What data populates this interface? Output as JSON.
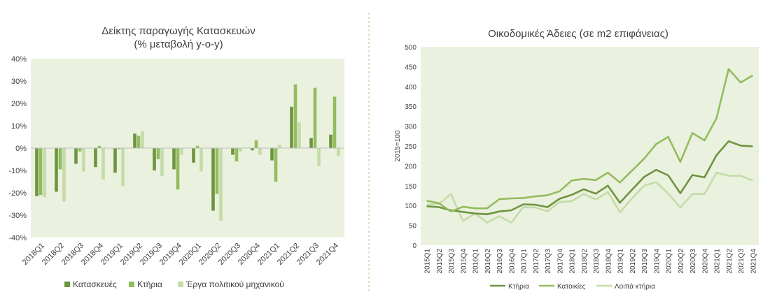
{
  "colors": {
    "dark": "#6e9440",
    "mid": "#93bc5e",
    "light": "#c4dca8",
    "plot_bg": "#ebf1df",
    "divider": "#a9c98a"
  },
  "chart_data": [
    {
      "type": "bar",
      "title_line1": "Δείκτης παραγωγής Κατασκευών",
      "title_line2": "(% μεταβολή y-o-y)",
      "categories": [
        "2018Q1",
        "2018Q2",
        "2018Q3",
        "2018Q4",
        "2019Q1",
        "2019Q2",
        "2019Q3",
        "2019Q4",
        "2020Q1",
        "2020Q2",
        "2020Q3",
        "2020Q4",
        "2021Q1",
        "2021Q2",
        "2021Q3",
        "2021Q4"
      ],
      "ylim": [
        -40,
        40
      ],
      "yticks": [
        "-40%",
        "-30%",
        "-20%",
        "-10%",
        "0%",
        "10%",
        "20%",
        "30%",
        "40%"
      ],
      "series": [
        {
          "name": "Κατασκευές",
          "color_key": "dark",
          "values": [
            -21.5,
            -19.5,
            -7,
            -8.5,
            -11,
            6.5,
            -10,
            -9.5,
            -6.5,
            -28,
            -3,
            -1,
            -5.5,
            18.5,
            4.5,
            6
          ]
        },
        {
          "name": "Κτήρια",
          "color_key": "mid",
          "values": [
            -21,
            -9.5,
            -1.5,
            1,
            -0.5,
            5.5,
            -5,
            -18.5,
            1,
            -20.5,
            -6,
            3.5,
            -15,
            28.5,
            27,
            23
          ]
        },
        {
          "name": "Έργα πολιτικού μηχανικού",
          "color_key": "light",
          "values": [
            -22,
            -24,
            -10.5,
            -14,
            -17,
            7.5,
            -12.5,
            -3,
            -10.5,
            -32.5,
            -1.5,
            -3,
            1.5,
            11.5,
            -8,
            -3.5
          ]
        }
      ]
    },
    {
      "type": "line",
      "title": "Οικοδομικές Άδειες (σε m2 επιφάνειας)",
      "ylabel": "2015=100",
      "ylim": [
        0,
        500
      ],
      "yticks": [
        "0",
        "50",
        "100",
        "150",
        "200",
        "250",
        "300",
        "350",
        "400",
        "450",
        "500"
      ],
      "categories": [
        "2015Q1",
        "2015Q2",
        "2015Q3",
        "2015Q4",
        "2016Q1",
        "2016Q2",
        "2016Q3",
        "2016Q4",
        "2017Q1",
        "2017Q2",
        "2017Q3",
        "2017Q4",
        "2018Q1",
        "2018Q2",
        "2018Q3",
        "2018Q4",
        "2019Q1",
        "2019Q2",
        "2019Q3",
        "2019Q4",
        "2020Q1",
        "2020Q2",
        "2020Q3",
        "2020Q4",
        "2021Q1",
        "2021Q2",
        "2021Q3",
        "2021Q4"
      ],
      "series": [
        {
          "name": "Κτήρια",
          "color_key": "dark",
          "values": [
            98,
            96,
            88,
            84,
            80,
            78,
            85,
            88,
            103,
            102,
            96,
            117,
            127,
            141,
            130,
            150,
            107,
            140,
            172,
            190,
            176,
            131,
            177,
            171,
            227,
            262,
            251,
            249
          ]
        },
        {
          "name": "Κατοικίες",
          "color_key": "mid",
          "values": [
            112,
            106,
            85,
            97,
            93,
            93,
            116,
            118,
            119,
            123,
            126,
            136,
            163,
            167,
            164,
            183,
            158,
            188,
            218,
            255,
            273,
            210,
            283,
            264,
            320,
            444,
            410,
            428
          ]
        },
        {
          "name": "Λοιπά κτήρια",
          "color_key": "light",
          "values": [
            102,
            104,
            129,
            61,
            80,
            57,
            73,
            57,
            96,
            95,
            85,
            109,
            111,
            129,
            115,
            134,
            83,
            118,
            150,
            159,
            130,
            95,
            129,
            129,
            183,
            175,
            175,
            163
          ]
        }
      ]
    }
  ]
}
